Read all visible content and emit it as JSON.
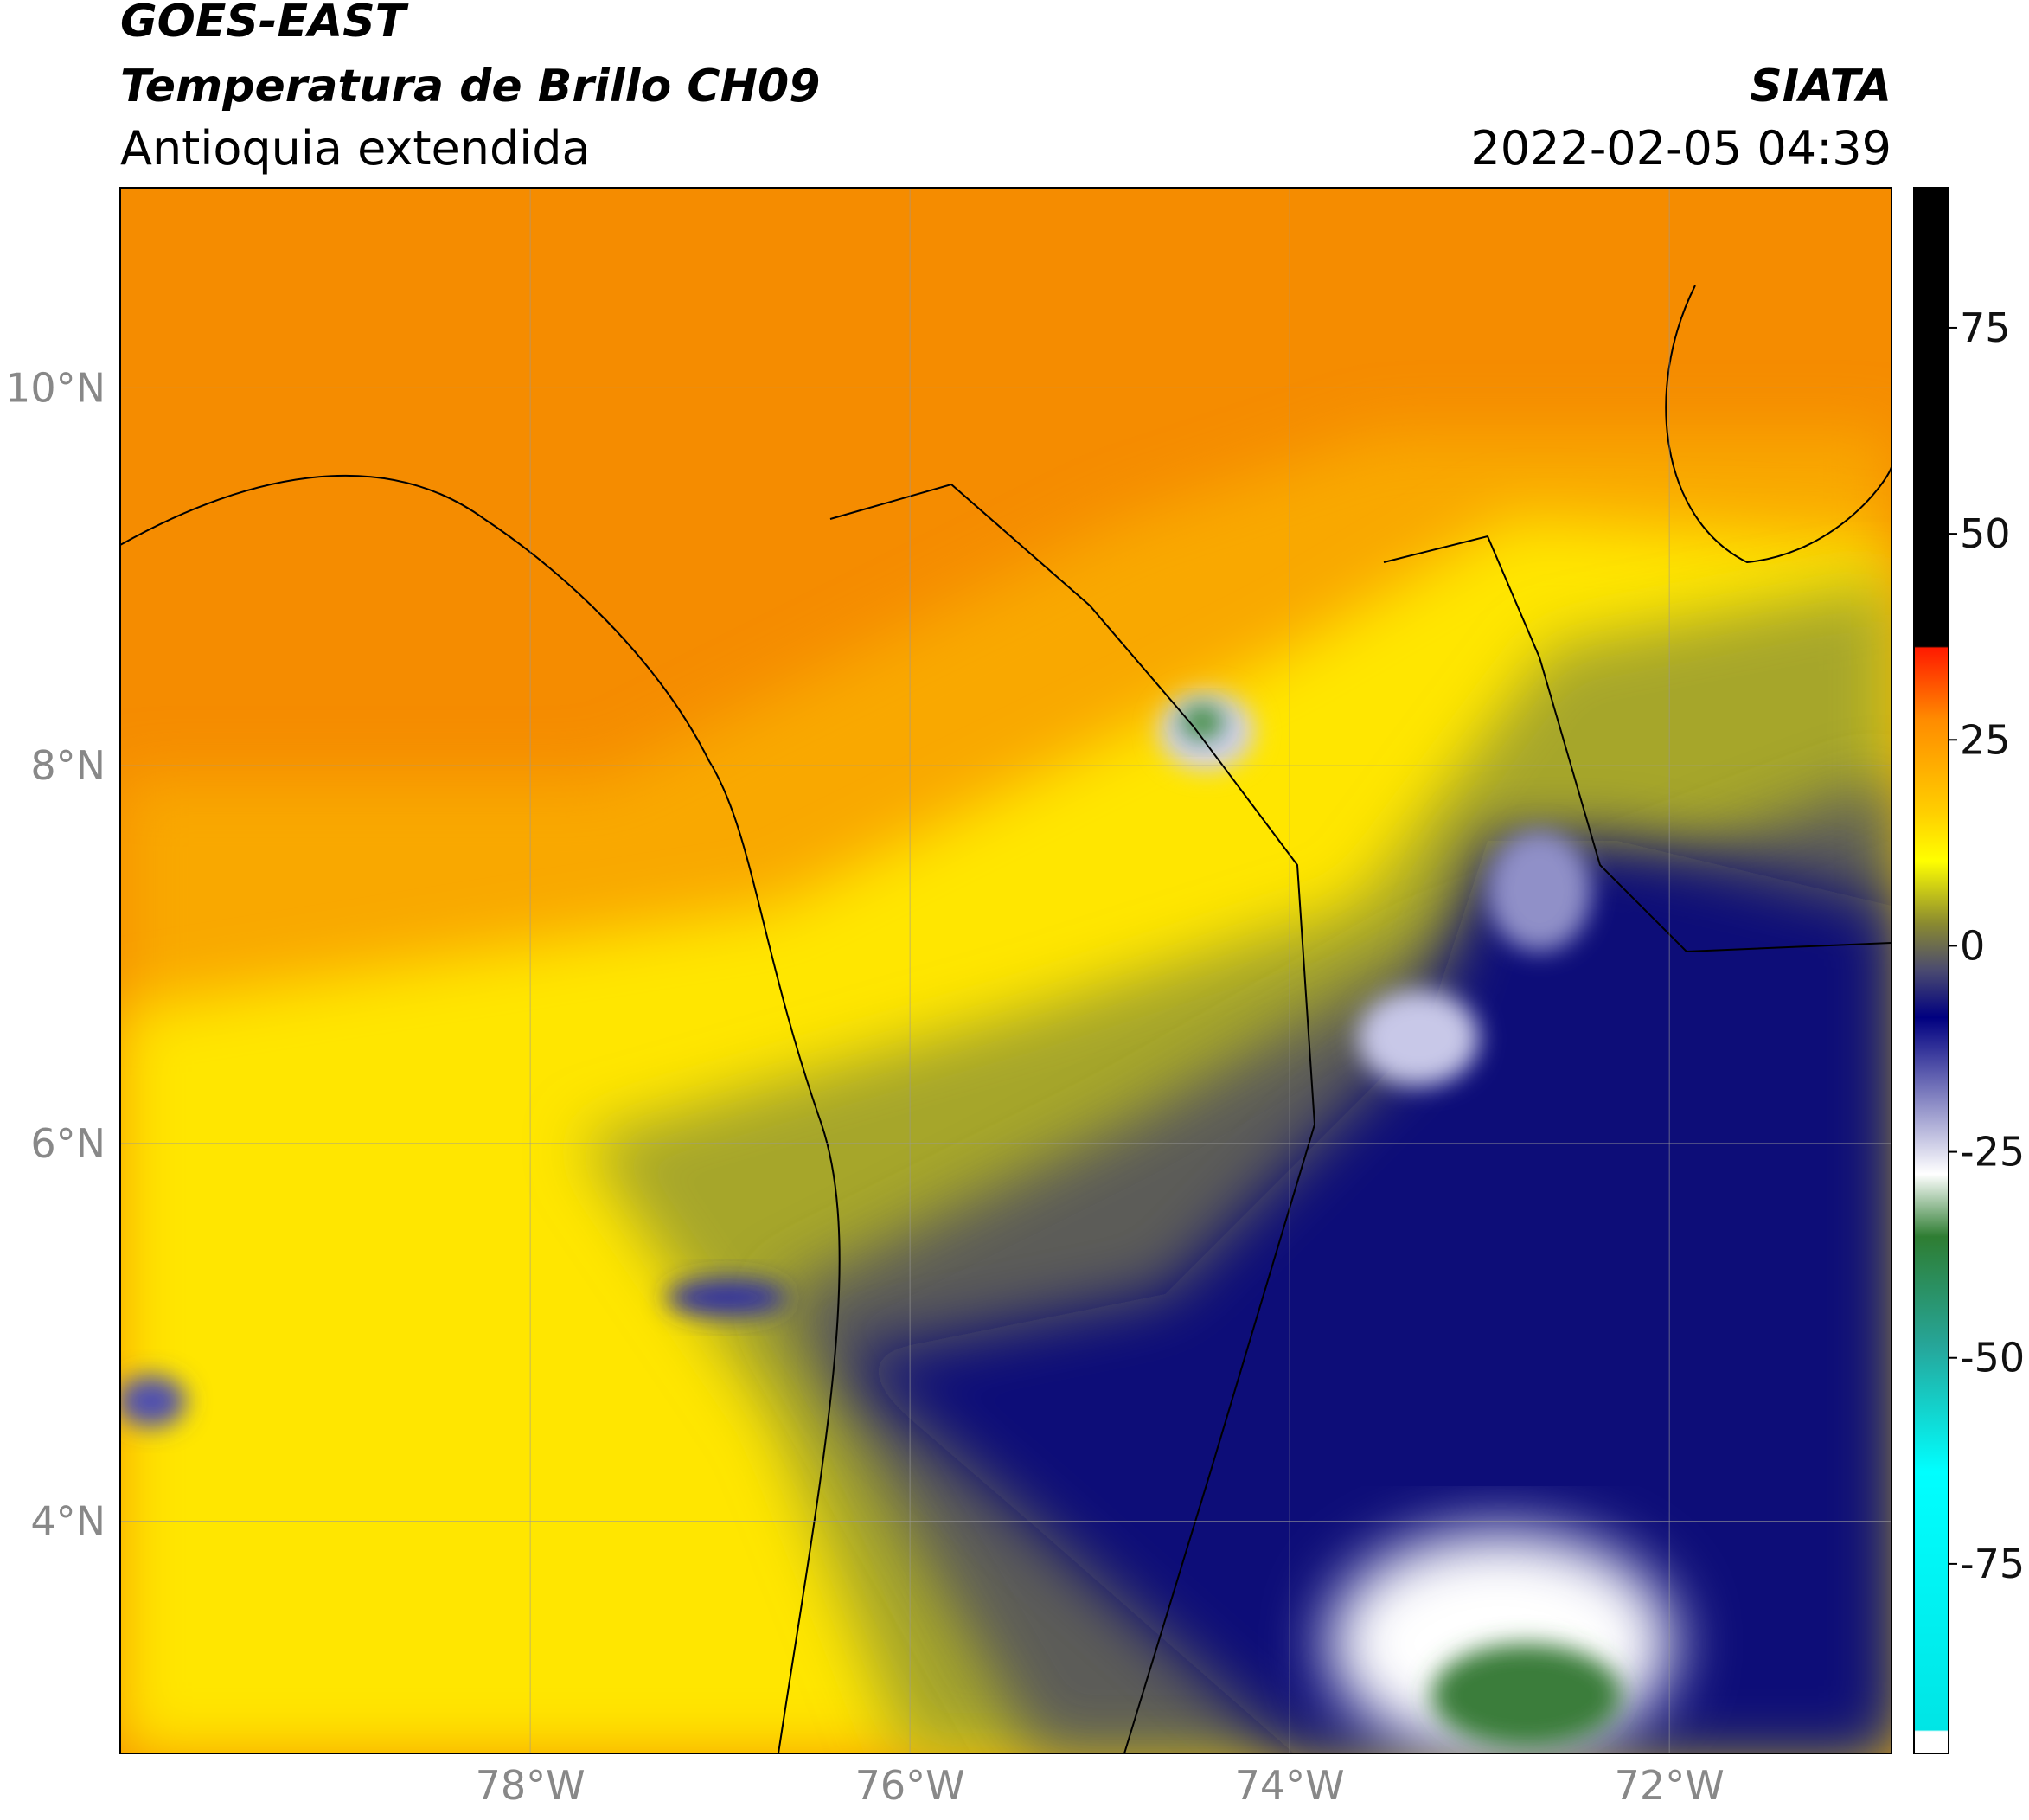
{
  "header": {
    "title": "GOES-EAST",
    "subtitle": "Temperatura de Brillo CH09",
    "region": "Antioquia extendida",
    "source": "SIATA",
    "datetime": "2022-02-05 04:39"
  },
  "map": {
    "xlim": [
      -80.16,
      -70.83
    ],
    "ylim": [
      2.77,
      11.06
    ],
    "xticks": [
      {
        "value": -78,
        "label": "78°W"
      },
      {
        "value": -76,
        "label": "76°W"
      },
      {
        "value": -74,
        "label": "74°W"
      },
      {
        "value": -72,
        "label": "72°W"
      }
    ],
    "yticks": [
      {
        "value": 10,
        "label": "10°N"
      },
      {
        "value": 8,
        "label": "8°N"
      },
      {
        "value": 6,
        "label": "6°N"
      },
      {
        "value": 4,
        "label": "4°N"
      }
    ],
    "grid": true
  },
  "colorbar": {
    "lim": [
      -98,
      92
    ],
    "ticks": [
      75,
      50,
      25,
      0,
      -25,
      -50,
      -75
    ]
  }
}
